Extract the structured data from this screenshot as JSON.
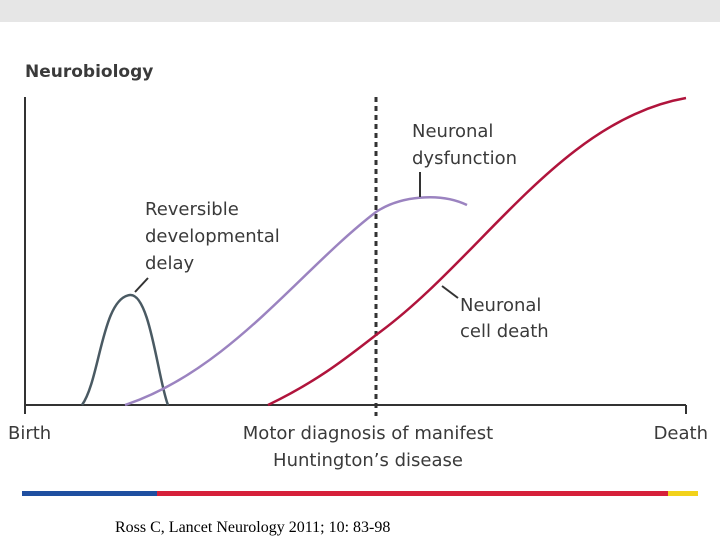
{
  "title": "Neurobiology",
  "curve_labels": {
    "delay": [
      "Reversible",
      "developmental",
      "delay"
    ],
    "dysfunction": [
      "Neuronal",
      "dysfunction"
    ],
    "death": [
      "Neuronal",
      "cell death"
    ]
  },
  "axis_labels": {
    "start": "Birth",
    "middle": [
      "Motor diagnosis of manifest",
      "Huntington’s disease"
    ],
    "end": "Death"
  },
  "citation": "Ross C, Lancet Neurology 2011; 10: 83-98"
}
